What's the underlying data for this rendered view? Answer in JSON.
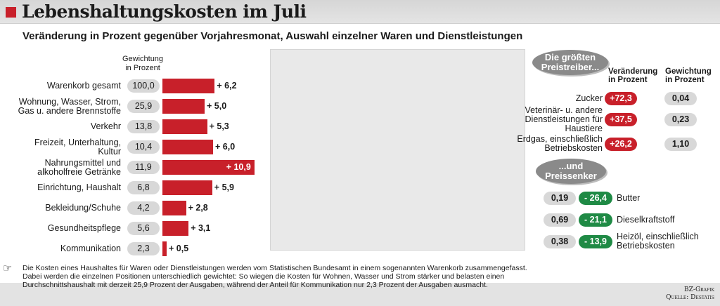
{
  "header": {
    "title": "Lebenshaltungskosten im Juli",
    "subtitle": "Veränderung in Prozent gegenüber Vorjahresmonat, Auswahl einzelner Waren und Dienstleistungen"
  },
  "chart_data": {
    "type": "bar",
    "orientation": "horizontal",
    "weight_header": [
      "Gewichtung",
      "in Prozent"
    ],
    "categories": [
      [
        "Warenkorb gesamt"
      ],
      [
        "Wohnung, Wasser, Strom,",
        "Gas u. andere Brennstoffe"
      ],
      [
        "Verkehr"
      ],
      [
        "Freizeit, Unterhaltung,",
        "Kultur"
      ],
      [
        "Nahrungsmittel und",
        "alkoholfreie Getränke"
      ],
      [
        "Einrichtung, Haushalt"
      ],
      [
        "Bekleidung/Schuhe"
      ],
      [
        "Gesundheitspflege"
      ],
      [
        "Kommunikation"
      ]
    ],
    "weights": [
      "100,0",
      "25,9",
      "13,8",
      "10,4",
      "11,9",
      "6,8",
      "4,2",
      "5,6",
      "2,3"
    ],
    "values": [
      6.2,
      5.0,
      5.3,
      6.0,
      10.9,
      5.9,
      2.8,
      3.1,
      0.5
    ],
    "value_labels": [
      "+ 6,2",
      "+ 5,0",
      "+ 5,3",
      "+ 6,0",
      "+ 10,9",
      "+ 5,9",
      "+ 2,8",
      "+ 3,1",
      "+ 0,5"
    ],
    "colors": {
      "bar": "#c8202a",
      "weight_pill": "#d8d8d8"
    }
  },
  "risers": {
    "bubble": [
      "Die größten",
      "Preistreiber..."
    ],
    "col_change": [
      "Veränderung",
      "in Prozent"
    ],
    "col_weight": [
      "Gewichtung",
      "in Prozent"
    ],
    "items": [
      {
        "label": [
          "Zucker"
        ],
        "change": "+72,3",
        "weight": "0,04"
      },
      {
        "label": [
          "Veterinär- u. andere",
          "Dienstleistungen für",
          "Haustiere"
        ],
        "change": "+37,5",
        "weight": "0,23"
      },
      {
        "label": [
          "Erdgas, einschließlich",
          "Betriebskosten"
        ],
        "change": "+26,2",
        "weight": "1,10"
      }
    ],
    "color": "#c8202a"
  },
  "fallers": {
    "bubble": [
      "...und",
      "Preissenker"
    ],
    "items": [
      {
        "label": [
          "Butter"
        ],
        "change": "- 26,4",
        "weight": "0,19"
      },
      {
        "label": [
          "Dieselkraftstoff"
        ],
        "change": "- 21,1",
        "weight": "0,69"
      },
      {
        "label": [
          "Heizöl, einschließlich",
          "Betriebskosten"
        ],
        "change": "- 13,9",
        "weight": "0,38"
      }
    ],
    "color": "#1f8a45"
  },
  "footnote": {
    "icon": "pointing-hand-icon",
    "lines": [
      "Die Kosten eines Haushaltes für Waren oder Dienstleistungen werden vom Statistischen Bundesamt in einem sogenannten Warenkorb zusammengefasst.",
      "Dabei werden die einzelnen Positionen unterschiedlich gewichtet: So wiegen die Kosten für Wohnen, Wasser und Strom stärker und belasten einen",
      "Durchschnittshaushalt mit derzeit 25,9 Prozent der Ausgaben, während der Anteil für Kommunikation nur 2,3 Prozent der Ausgaben ausmacht."
    ]
  },
  "credit": {
    "line1": "BZ-Grafik",
    "line2": "Quelle: Destatis"
  }
}
